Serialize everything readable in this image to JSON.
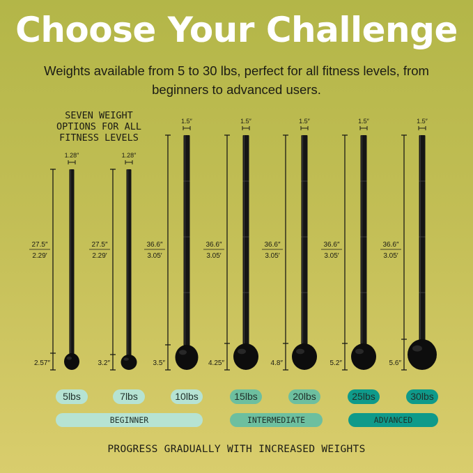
{
  "title": "Choose Your Challenge",
  "subtitle": "Weights available from 5 to 30 lbs, perfect for all fitness levels, from beginners to advanced users.",
  "side_label": "SEVEN WEIGHT OPTIONS FOR ALL FITNESS LEVELS",
  "footer": "PROGRESS GRADUALLY WITH INCREASED WEIGHTS",
  "colors": {
    "beginner": "#b6e3d3",
    "intermediate": "#6dbf9f",
    "advanced": "#0f9a8a",
    "mace": "#111111"
  },
  "maces": [
    {
      "weight": "5lbs",
      "diameter": "1.28″",
      "length_in": "27.5″",
      "length_ft": "2.29′",
      "head": "2.57″",
      "level": "beginner"
    },
    {
      "weight": "7lbs",
      "diameter": "1.28″",
      "length_in": "27.5″",
      "length_ft": "2.29′",
      "head": "3.2″",
      "level": "beginner"
    },
    {
      "weight": "10lbs",
      "diameter": "1.5″",
      "length_in": "36.6″",
      "length_ft": "3.05′",
      "head": "3.5″",
      "level": "beginner"
    },
    {
      "weight": "15lbs",
      "diameter": "1.5″",
      "length_in": "36.6″",
      "length_ft": "3.05′",
      "head": "4.25″",
      "level": "intermediate"
    },
    {
      "weight": "20lbs",
      "diameter": "1.5″",
      "length_in": "36.6″",
      "length_ft": "3.05′",
      "head": "4.8″",
      "level": "intermediate"
    },
    {
      "weight": "25lbs",
      "diameter": "1.5″",
      "length_in": "36.6″",
      "length_ft": "3.05′",
      "head": "5.2″",
      "level": "advanced"
    },
    {
      "weight": "30lbs",
      "diameter": "1.5″",
      "length_in": "36.6″",
      "length_ft": "3.05′",
      "head": "5.6″",
      "level": "advanced"
    }
  ],
  "levels": {
    "beginner": "BEGINNER",
    "intermediate": "INTERMEDIATE",
    "advanced": "ADVANCED"
  }
}
